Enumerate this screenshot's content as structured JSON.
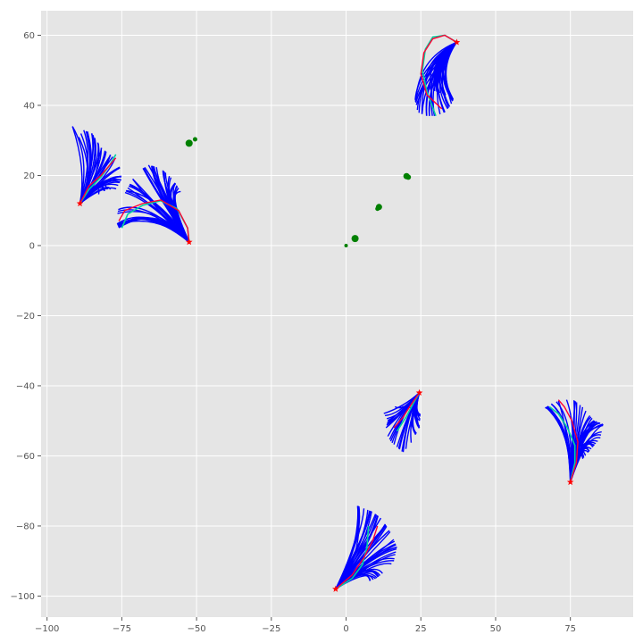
{
  "chart_data": {
    "type": "line",
    "title": "",
    "xlabel": "",
    "ylabel": "",
    "xlim": [
      -102,
      96
    ],
    "ylim": [
      -106,
      67
    ],
    "grid": true,
    "legend": "none",
    "x_ticks": [
      -100,
      -75,
      -50,
      -25,
      0,
      25,
      50,
      75
    ],
    "y_ticks": [
      -100,
      -80,
      -60,
      -40,
      -20,
      0,
      20,
      40,
      60
    ],
    "x_tick_labels": [
      "−100",
      "−75",
      "−50",
      "−25",
      "0",
      "25",
      "50",
      "75"
    ],
    "y_tick_labels": [
      "−100",
      "−80",
      "−60",
      "−40",
      "−20",
      "0",
      "20",
      "40",
      "60"
    ],
    "colors": {
      "background": "#e5e5e5",
      "grid": "#ffffff",
      "samples": "#0000ff",
      "ground_truth": "#ff0033",
      "prediction": "#00d0a0",
      "start_marker": "#ff0000",
      "scatter": "#008000"
    },
    "scatter": [
      {
        "x": -52.5,
        "y": 29.2,
        "size": 4
      },
      {
        "x": -50.5,
        "y": 30.3,
        "size": 2.5
      },
      {
        "x": 3.0,
        "y": 2.0,
        "size": 4
      },
      {
        "x": 0.0,
        "y": 0.0,
        "size": 2
      },
      {
        "x": 10.5,
        "y": 10.5,
        "size": 2.5
      },
      {
        "x": 11.0,
        "y": 11.0,
        "size": 3.5
      },
      {
        "x": 20.2,
        "y": 19.8,
        "size": 3.5
      },
      {
        "x": 20.8,
        "y": 19.5,
        "size": 3
      }
    ],
    "clusters": [
      {
        "start": [
          -89,
          12
        ],
        "ground_truth": [
          [
            -89,
            12
          ],
          [
            -86,
            17
          ],
          [
            -82,
            20
          ],
          [
            -78,
            24
          ],
          [
            -77,
            25
          ]
        ],
        "prediction": [
          [
            -89,
            12
          ],
          [
            -86,
            16
          ],
          [
            -82,
            19.5
          ],
          [
            -79,
            23
          ],
          [
            -77,
            26
          ]
        ],
        "fan": {
          "ends": [
            [
              -91.5,
              34
            ],
            [
              -90,
              30
            ],
            [
              -88,
              33
            ],
            [
              -85,
              32
            ],
            [
              -82,
              28
            ],
            [
              -79,
              26
            ],
            [
              -76,
              24
            ],
            [
              -75,
              19
            ],
            [
              -77,
              16
            ],
            [
              -80,
              16
            ],
            [
              -84,
              14
            ]
          ],
          "ctrl": 0.5,
          "n": 40
        }
      },
      {
        "start": [
          -52.5,
          1
        ],
        "ground_truth": [
          [
            -52.5,
            1
          ],
          [
            -53,
            5
          ],
          [
            -56,
            10
          ],
          [
            -62,
            13
          ],
          [
            -68,
            12
          ],
          [
            -74,
            10
          ],
          [
            -76,
            7
          ]
        ],
        "prediction": [
          [
            -52.5,
            1
          ],
          [
            -53,
            5
          ],
          [
            -56.5,
            10.5
          ],
          [
            -62,
            12.8
          ],
          [
            -68,
            11.5
          ],
          [
            -73,
            9
          ],
          [
            -75,
            5
          ]
        ],
        "fan": {
          "ends": [
            [
              -76,
              5
            ],
            [
              -77,
              7
            ],
            [
              -76,
              11
            ],
            [
              -74,
              15
            ],
            [
              -72,
              18
            ],
            [
              -70,
              21
            ],
            [
              -66,
              23
            ],
            [
              -62,
              22
            ],
            [
              -58,
              19
            ],
            [
              -55,
              15
            ]
          ],
          "ctrl": 0.45,
          "n": 45
        }
      },
      {
        "start": [
          37,
          58
        ],
        "ground_truth": [
          [
            37,
            58
          ],
          [
            33,
            60
          ],
          [
            29,
            59
          ],
          [
            26,
            55
          ],
          [
            25,
            49
          ],
          [
            27,
            43
          ],
          [
            32,
            39
          ]
        ],
        "prediction": [
          [
            37,
            58
          ],
          [
            33,
            60
          ],
          [
            29,
            59.5
          ],
          [
            26.5,
            56
          ],
          [
            25.5,
            50
          ],
          [
            27,
            44
          ],
          [
            30,
            37
          ]
        ],
        "fan": {
          "ends": [
            [
              23,
              42
            ],
            [
              24,
              38
            ],
            [
              27,
              37
            ],
            [
              30,
              37
            ],
            [
              33,
              38
            ],
            [
              35,
              40
            ],
            [
              36,
              42
            ],
            [
              33,
              43
            ],
            [
              30,
              44
            ],
            [
              26,
              45
            ]
          ],
          "ctrl": 0.5,
          "n": 45
        }
      },
      {
        "start": [
          24.5,
          -42
        ],
        "ground_truth": [
          [
            24.5,
            -42
          ],
          [
            22,
            -45
          ],
          [
            19,
            -49
          ],
          [
            16,
            -52
          ]
        ],
        "prediction": [
          [
            24.5,
            -42
          ],
          [
            22.5,
            -45
          ],
          [
            20,
            -49
          ],
          [
            17,
            -53
          ]
        ],
        "fan": {
          "ends": [
            [
              12,
              -47
            ],
            [
              14,
              -50
            ],
            [
              13,
              -53
            ],
            [
              15,
              -56
            ],
            [
              19,
              -59
            ],
            [
              22,
              -56
            ],
            [
              24.5,
              -52
            ],
            [
              25,
              -47
            ],
            [
              20,
              -46
            ],
            [
              15,
              -46
            ]
          ],
          "ctrl": 0.5,
          "n": 40
        }
      },
      {
        "start": [
          75,
          -67.5
        ],
        "ground_truth": [
          [
            75,
            -67.5
          ],
          [
            77,
            -62
          ],
          [
            77.5,
            -56
          ],
          [
            75.5,
            -50
          ],
          [
            73,
            -46
          ],
          [
            71,
            -44
          ]
        ],
        "prediction": [
          [
            75,
            -67.5
          ],
          [
            76.5,
            -62
          ],
          [
            76.5,
            -57
          ],
          [
            74,
            -52
          ],
          [
            71,
            -48
          ],
          [
            68,
            -46
          ]
        ],
        "fan": {
          "ends": [
            [
              66,
              -46.5
            ],
            [
              69,
              -45
            ],
            [
              72,
              -44
            ],
            [
              76,
              -44
            ],
            [
              79,
              -46
            ],
            [
              83,
              -50
            ],
            [
              86,
              -51
            ],
            [
              85,
              -55
            ],
            [
              82,
              -58
            ],
            [
              78,
              -62
            ]
          ],
          "ctrl": 0.5,
          "n": 45
        }
      },
      {
        "start": [
          -3.5,
          -98
        ],
        "ground_truth": [
          [
            -3.5,
            -98
          ],
          [
            2,
            -94
          ],
          [
            6,
            -89
          ],
          [
            9,
            -84
          ],
          [
            10.5,
            -80
          ]
        ],
        "prediction": [
          [
            -3.5,
            -98
          ],
          [
            2,
            -95
          ],
          [
            5.5,
            -91
          ],
          [
            7,
            -86
          ],
          [
            7.5,
            -80
          ]
        ],
        "fan": {
          "ends": [
            [
              3,
              -74
            ],
            [
              6,
              -75
            ],
            [
              9,
              -76
            ],
            [
              12,
              -78
            ],
            [
              15,
              -82
            ],
            [
              17,
              -86
            ],
            [
              16,
              -90
            ],
            [
              13,
              -93
            ],
            [
              10,
              -95
            ],
            [
              7,
              -96
            ]
          ],
          "ctrl": 0.5,
          "n": 45
        }
      }
    ]
  }
}
